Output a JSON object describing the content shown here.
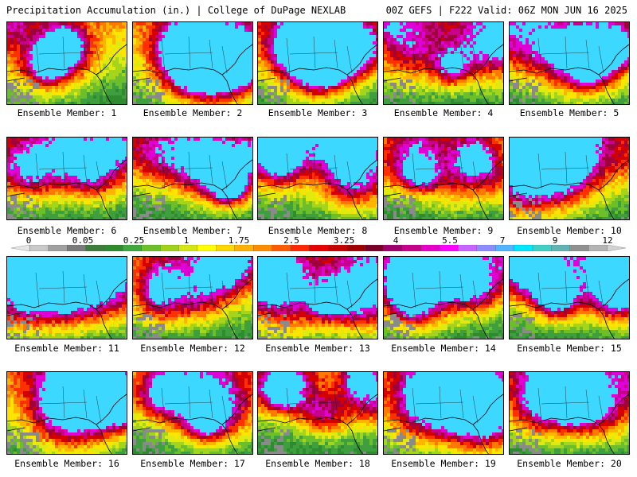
{
  "header": {
    "title_left": "Precipitation Accumulation (in.) | College of DuPage NEXLAB",
    "title_right": "00Z GEFS | F222 Valid: 06Z MON JUN 16 2025"
  },
  "colorbar": {
    "labels": [
      "0",
      "0.05",
      "0.25",
      "1",
      "1.75",
      "2.5",
      "3.25",
      "4",
      "5.5",
      "7",
      "9",
      "12"
    ],
    "colors": [
      "#e6e6e6",
      "#c8c8c8",
      "#a0a0a0",
      "#7a7a7a",
      "#3c7d3c",
      "#2e8b2e",
      "#3fa83f",
      "#6cc02a",
      "#9fd21a",
      "#d6e614",
      "#ffff00",
      "#ffd700",
      "#ffb000",
      "#ff8c00",
      "#ff5a00",
      "#ff2800",
      "#e60000",
      "#c80000",
      "#a00000",
      "#7a0028",
      "#a0006e",
      "#c8008c",
      "#e600c8",
      "#ff00ff",
      "#c864ff",
      "#8c8cff",
      "#50b4ff",
      "#00e6ff",
      "#40d0c8",
      "#60b4b4",
      "#909090",
      "#b4b4b4",
      "#d2d2d2"
    ]
  },
  "panels": [
    {
      "label": "Ensemble Member: 1"
    },
    {
      "label": "Ensemble Member: 2"
    },
    {
      "label": "Ensemble Member: 3"
    },
    {
      "label": "Ensemble Member: 4"
    },
    {
      "label": "Ensemble Member: 5"
    },
    {
      "label": "Ensemble Member: 6"
    },
    {
      "label": "Ensemble Member: 7"
    },
    {
      "label": "Ensemble Member: 8"
    },
    {
      "label": "Ensemble Member: 9"
    },
    {
      "label": "Ensemble Member: 10"
    },
    {
      "label": "Ensemble Member: 11"
    },
    {
      "label": "Ensemble Member: 12"
    },
    {
      "label": "Ensemble Member: 13"
    },
    {
      "label": "Ensemble Member: 14"
    },
    {
      "label": "Ensemble Member: 15"
    },
    {
      "label": "Ensemble Member: 16"
    },
    {
      "label": "Ensemble Member: 17"
    },
    {
      "label": "Ensemble Member: 18"
    },
    {
      "label": "Ensemble Member: 19"
    },
    {
      "label": "Ensemble Member: 20"
    }
  ]
}
